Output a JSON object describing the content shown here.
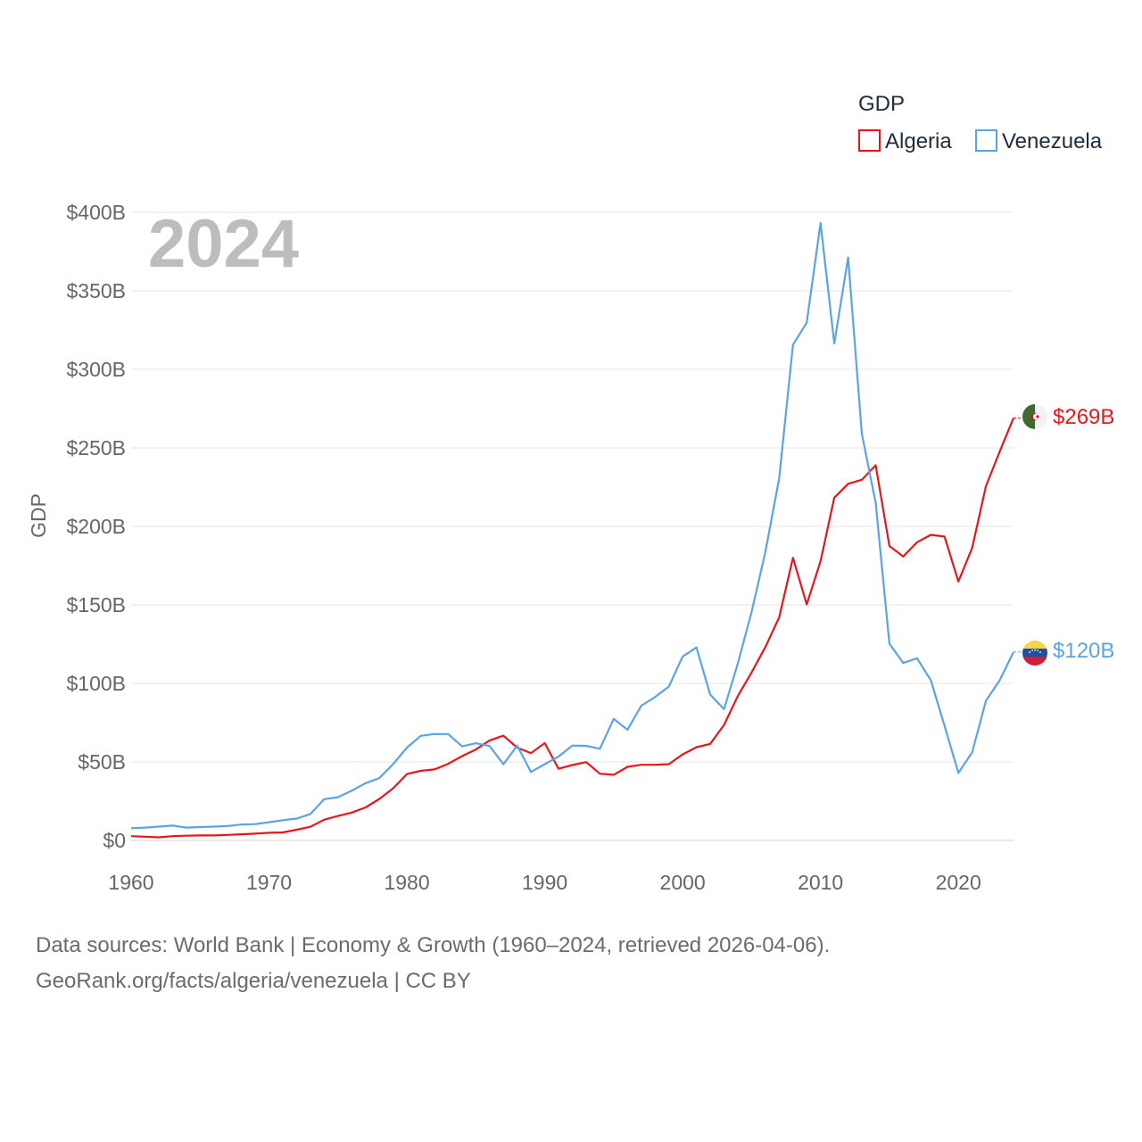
{
  "chart_data": {
    "type": "line",
    "title": "",
    "ylabel": "GDP",
    "xlabel": "",
    "year_label": "2024",
    "legend_title": "GDP",
    "xlim": [
      1960,
      2024
    ],
    "ylim": [
      0,
      400
    ],
    "y_ticks": [
      {
        "value": 0,
        "label": "$0"
      },
      {
        "value": 50,
        "label": "$50B"
      },
      {
        "value": 100,
        "label": "$100B"
      },
      {
        "value": 150,
        "label": "$150B"
      },
      {
        "value": 200,
        "label": "$200B"
      },
      {
        "value": 250,
        "label": "$250B"
      },
      {
        "value": 300,
        "label": "$300B"
      },
      {
        "value": 350,
        "label": "$350B"
      },
      {
        "value": 400,
        "label": "$400B"
      }
    ],
    "x_ticks": [
      {
        "value": 1960,
        "label": "1960"
      },
      {
        "value": 1970,
        "label": "1970"
      },
      {
        "value": 1980,
        "label": "1980"
      },
      {
        "value": 1990,
        "label": "1990"
      },
      {
        "value": 2000,
        "label": "2000"
      },
      {
        "value": 2010,
        "label": "2010"
      },
      {
        "value": 2020,
        "label": "2020"
      }
    ],
    "x": [
      1960,
      1961,
      1962,
      1963,
      1964,
      1965,
      1966,
      1967,
      1968,
      1969,
      1970,
      1971,
      1972,
      1973,
      1974,
      1975,
      1976,
      1977,
      1978,
      1979,
      1980,
      1981,
      1982,
      1983,
      1984,
      1985,
      1986,
      1987,
      1988,
      1989,
      1990,
      1991,
      1992,
      1993,
      1994,
      1995,
      1996,
      1997,
      1998,
      1999,
      2000,
      2001,
      2002,
      2003,
      2004,
      2005,
      2006,
      2007,
      2008,
      2009,
      2010,
      2011,
      2012,
      2013,
      2014,
      2015,
      2016,
      2017,
      2018,
      2019,
      2020,
      2021,
      2022,
      2023,
      2024
    ],
    "series": [
      {
        "name": "Algeria",
        "color": "#e8161a",
        "end_label": "$269B",
        "flag": "algeria-flag",
        "values": [
          2.7,
          2.4,
          2.0,
          2.7,
          3.0,
          3.2,
          3.2,
          3.5,
          3.9,
          4.3,
          4.9,
          5.1,
          6.8,
          8.7,
          13.2,
          15.6,
          17.7,
          21.0,
          26.4,
          33.2,
          42.3,
          44.3,
          45.2,
          48.8,
          53.7,
          57.9,
          63.7,
          66.7,
          59.1,
          55.6,
          62.0,
          45.7,
          48.0,
          49.9,
          42.5,
          41.8,
          46.9,
          48.2,
          48.2,
          48.6,
          54.8,
          59.4,
          61.5,
          73.5,
          91.9,
          107.0,
          123.1,
          142.0,
          180.0,
          150.3,
          177.8,
          218.3,
          227.1,
          229.7,
          238.9,
          187.5,
          180.8,
          189.9,
          194.6,
          193.5,
          164.9,
          186.2,
          225.6,
          247.6,
          269.0
        ]
      },
      {
        "name": "Venezuela",
        "color": "#5aa4e6",
        "end_label": "$120B",
        "flag": "venezuela-flag",
        "values": [
          7.8,
          8.2,
          8.8,
          9.5,
          8.2,
          8.5,
          8.8,
          9.2,
          10.1,
          10.4,
          11.6,
          12.9,
          13.9,
          16.8,
          26.3,
          27.5,
          31.7,
          36.5,
          39.7,
          48.6,
          59.1,
          66.6,
          67.8,
          67.7,
          59.9,
          61.9,
          60.1,
          48.5,
          60.4,
          43.6,
          48.6,
          53.4,
          60.4,
          60.2,
          58.4,
          77.4,
          70.5,
          85.8,
          91.3,
          98.0,
          117.1,
          122.9,
          92.9,
          83.6,
          112.5,
          145.5,
          183.5,
          230.4,
          315.6,
          329.8,
          393.2,
          316.5,
          371.3,
          258.9,
          215.0,
          125.3,
          113.0,
          116.0,
          102.0,
          73.0,
          43.0,
          56.0,
          89.0,
          102.0,
          120.0
        ]
      }
    ]
  },
  "footer": {
    "line1": "Data sources: World Bank | Economy & Growth (1960–2024, retrieved 2026-04-06).",
    "line2": "GeoRank.org/facts/algeria/venezuela | CC BY"
  }
}
